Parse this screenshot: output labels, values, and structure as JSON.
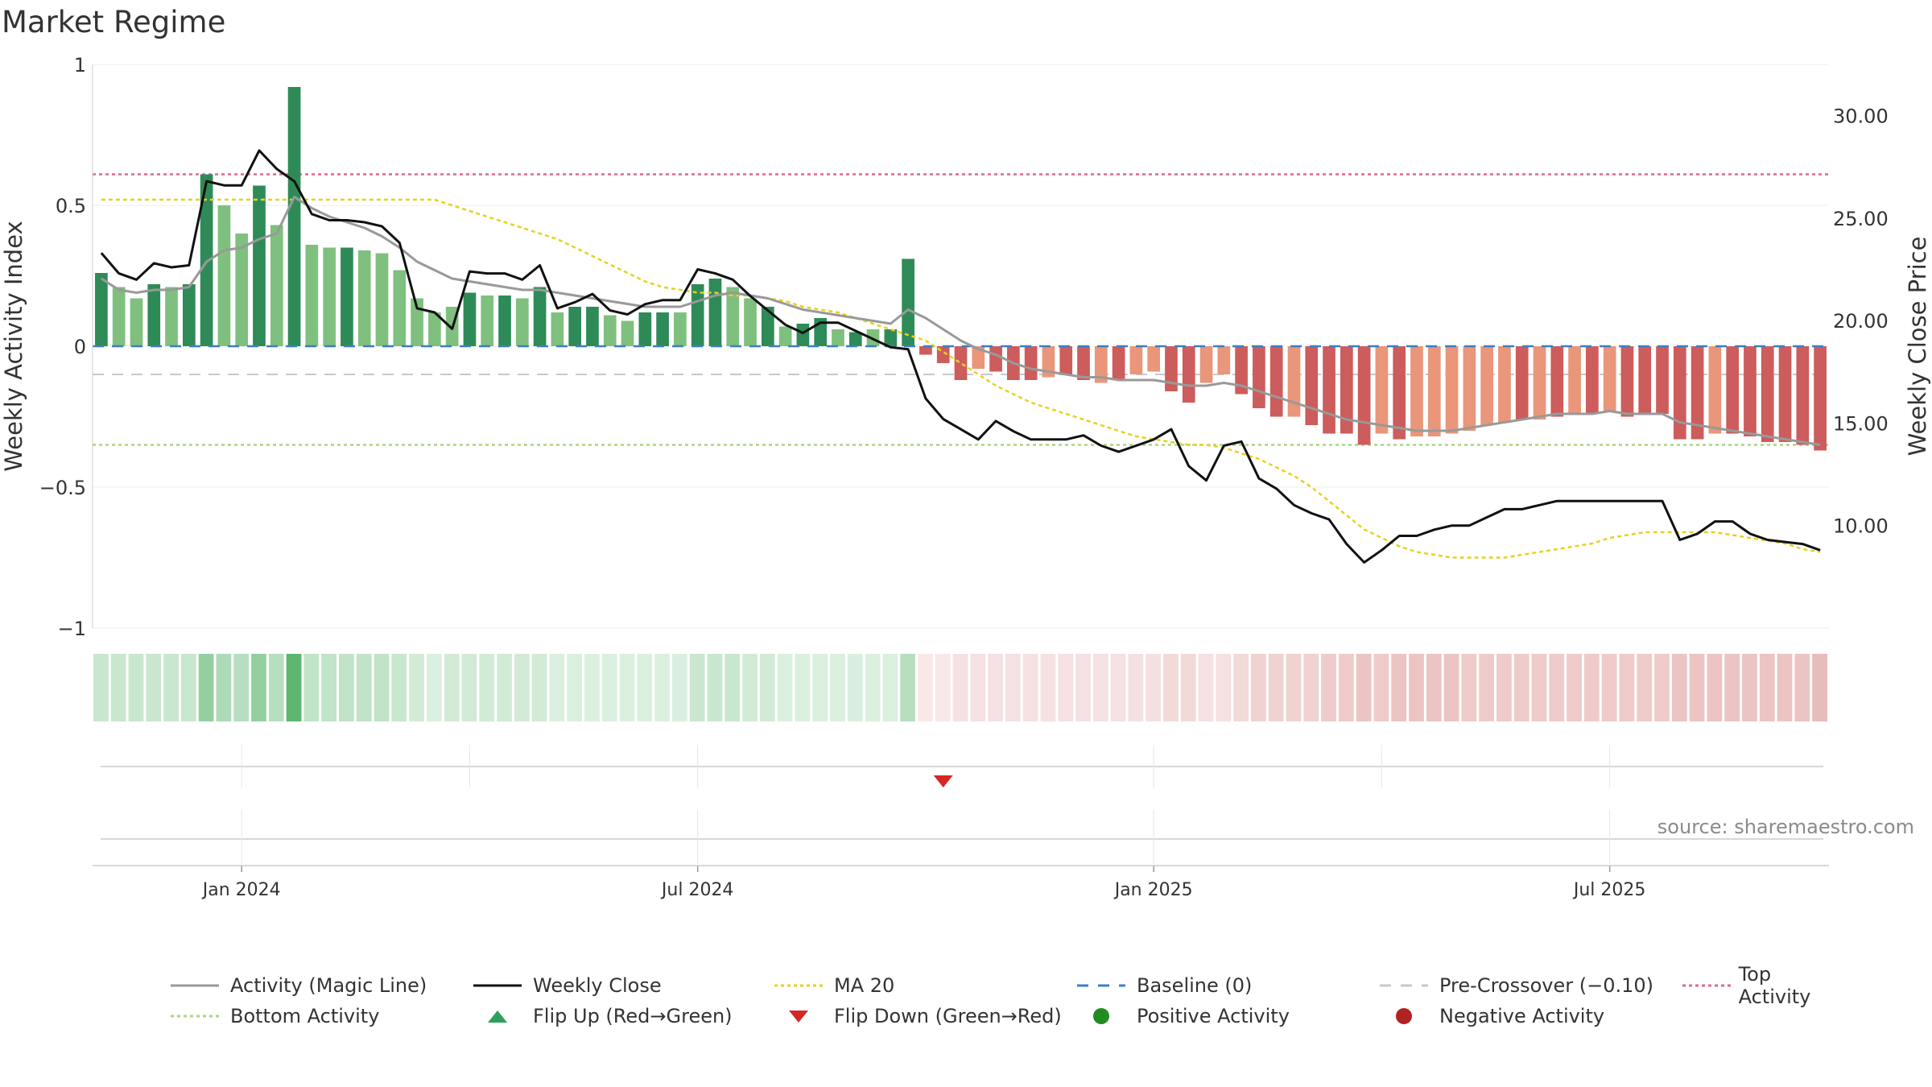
{
  "title": "Market Regime",
  "source": "source: sharemaestro.com",
  "colors": {
    "pos_strong": "#2e8b57",
    "pos_weak": "#7fc07f",
    "neg_strong": "#cd5c5c",
    "neg_weak": "#e9967a",
    "close": "#111111",
    "magic": "#999999",
    "ma20": "#e6d21e",
    "baseline": "#3b7fc4",
    "precross": "#c8c8c8",
    "top": "#d96a8e",
    "bottom": "#a8d87a",
    "flip_up": "#2ca05a",
    "flip_down": "#d62728",
    "pos_dot": "#228b22",
    "neg_dot": "#b22222"
  },
  "legend": [
    {
      "label": "Activity (Magic Line)",
      "key": "line",
      "color": "#999999"
    },
    {
      "label": "Weekly Close",
      "key": "line",
      "color": "#111111"
    },
    {
      "label": "MA 20",
      "key": "dotted",
      "color": "#e6d21e"
    },
    {
      "label": "Baseline (0)",
      "key": "dashed",
      "color": "#3b7fc4"
    },
    {
      "label": "Pre-Crossover (−0.10)",
      "key": "dashed",
      "color": "#c8c8c8"
    },
    {
      "label": "Top Activity",
      "key": "dotted",
      "color": "#d96a8e"
    },
    {
      "label": "Bottom Activity",
      "key": "dotted",
      "color": "#a8d87a"
    },
    {
      "label": "Flip Up (Red→Green)",
      "key": "tri-up",
      "color": "#2ca05a"
    },
    {
      "label": "Flip Down (Green→Red)",
      "key": "tri-down",
      "color": "#d62728"
    },
    {
      "label": "Positive Activity",
      "key": "dot",
      "color": "#228b22"
    },
    {
      "label": "Negative Activity",
      "key": "dot",
      "color": "#b22222"
    }
  ],
  "chart_data": {
    "type": "bar",
    "title": "Market Regime",
    "ylabel": "Weekly Activity Index",
    "y2label": "Weekly Close Price",
    "ylim": [
      -1,
      1
    ],
    "yticks": [
      "1",
      "0.5",
      "0",
      "−0.5",
      "−1"
    ],
    "y2lim": [
      5,
      32.5
    ],
    "y2ticks": [
      "30.00",
      "25.00",
      "20.00",
      "15.00",
      "10.00"
    ],
    "xticks": [
      "Jan 2024",
      "Jul 2024",
      "Jan 2025",
      "Jul 2025"
    ],
    "reference_lines": {
      "baseline": 0,
      "pre_crossover": -0.1,
      "top_activity": 0.61,
      "bottom_activity": -0.35
    },
    "weeks": 99,
    "activity": [
      0.26,
      0.21,
      0.17,
      0.22,
      0.21,
      0.22,
      0.61,
      0.5,
      0.4,
      0.57,
      0.43,
      0.92,
      0.36,
      0.35,
      0.35,
      0.34,
      0.33,
      0.27,
      0.17,
      0.12,
      0.14,
      0.19,
      0.18,
      0.18,
      0.17,
      0.21,
      0.12,
      0.14,
      0.14,
      0.11,
      0.09,
      0.12,
      0.12,
      0.12,
      0.22,
      0.24,
      0.21,
      0.17,
      0.14,
      0.07,
      0.08,
      0.1,
      0.06,
      0.05,
      0.06,
      0.06,
      0.31,
      -0.03,
      -0.06,
      -0.12,
      -0.08,
      -0.09,
      -0.12,
      -0.12,
      -0.11,
      -0.1,
      -0.12,
      -0.13,
      -0.12,
      -0.1,
      -0.09,
      -0.16,
      -0.2,
      -0.13,
      -0.1,
      -0.17,
      -0.22,
      -0.25,
      -0.25,
      -0.28,
      -0.31,
      -0.31,
      -0.35,
      -0.31,
      -0.33,
      -0.32,
      -0.32,
      -0.31,
      -0.3,
      -0.28,
      -0.27,
      -0.26,
      -0.26,
      -0.25,
      -0.24,
      -0.24,
      -0.23,
      -0.25,
      -0.24,
      -0.24,
      -0.33,
      -0.33,
      -0.31,
      -0.31,
      -0.32,
      -0.34,
      -0.34,
      -0.35,
      -0.37
    ],
    "strong": [
      1,
      0,
      0,
      1,
      0,
      1,
      1,
      0,
      0,
      1,
      0,
      1,
      0,
      0,
      1,
      0,
      0,
      0,
      0,
      0,
      0,
      1,
      0,
      1,
      0,
      1,
      0,
      1,
      1,
      0,
      0,
      1,
      1,
      0,
      1,
      1,
      0,
      0,
      1,
      0,
      1,
      1,
      0,
      1,
      0,
      1,
      1,
      1,
      1,
      1,
      0,
      1,
      1,
      1,
      0,
      1,
      1,
      0,
      1,
      0,
      0,
      1,
      1,
      0,
      0,
      1,
      1,
      1,
      0,
      1,
      1,
      1,
      1,
      0,
      1,
      0,
      0,
      0,
      0,
      0,
      0,
      1,
      0,
      1,
      0,
      1,
      0,
      1,
      1,
      1,
      1,
      1,
      0,
      1,
      1,
      1,
      1,
      1,
      1
    ],
    "magic_line": [
      0.24,
      0.2,
      0.19,
      0.2,
      0.2,
      0.21,
      0.3,
      0.34,
      0.35,
      0.38,
      0.4,
      0.53,
      0.49,
      0.46,
      0.44,
      0.42,
      0.39,
      0.35,
      0.3,
      0.27,
      0.24,
      0.23,
      0.22,
      0.21,
      0.2,
      0.2,
      0.19,
      0.18,
      0.17,
      0.16,
      0.15,
      0.14,
      0.14,
      0.14,
      0.16,
      0.18,
      0.19,
      0.18,
      0.17,
      0.15,
      0.13,
      0.12,
      0.11,
      0.1,
      0.09,
      0.08,
      0.13,
      0.1,
      0.06,
      0.02,
      -0.01,
      -0.03,
      -0.06,
      -0.08,
      -0.09,
      -0.1,
      -0.11,
      -0.11,
      -0.12,
      -0.12,
      -0.12,
      -0.13,
      -0.14,
      -0.14,
      -0.13,
      -0.14,
      -0.16,
      -0.18,
      -0.2,
      -0.22,
      -0.24,
      -0.26,
      -0.27,
      -0.28,
      -0.29,
      -0.3,
      -0.3,
      -0.3,
      -0.29,
      -0.28,
      -0.27,
      -0.26,
      -0.25,
      -0.24,
      -0.24,
      -0.24,
      -0.23,
      -0.24,
      -0.24,
      -0.24,
      -0.27,
      -0.28,
      -0.29,
      -0.3,
      -0.31,
      -0.32,
      -0.33,
      -0.34,
      -0.35
    ],
    "weekly_close": [
      23.3,
      22.3,
      22,
      22.8,
      22.6,
      22.7,
      26.8,
      26.6,
      26.6,
      28.3,
      27.4,
      26.8,
      25.2,
      24.9,
      24.9,
      24.8,
      24.6,
      23.8,
      20.6,
      20.4,
      19.6,
      22.4,
      22.3,
      22.3,
      22,
      22.7,
      20.6,
      20.9,
      21.3,
      20.5,
      20.3,
      20.8,
      21,
      21,
      22.5,
      22.3,
      22,
      21.2,
      20.5,
      19.8,
      19.4,
      19.9,
      19.9,
      19.5,
      19.1,
      18.7,
      18.6,
      16.2,
      15.2,
      14.7,
      14.2,
      15.1,
      14.6,
      14.2,
      14.2,
      14.2,
      14.4,
      13.9,
      13.6,
      13.9,
      14.2,
      14.7,
      12.9,
      12.2,
      13.9,
      14.1,
      12.3,
      11.8,
      11,
      10.6,
      10.3,
      9.1,
      8.2,
      8.8,
      9.5,
      9.5,
      9.8,
      10,
      10,
      10.4,
      10.8,
      10.8,
      11,
      11.2,
      11.2,
      11.2,
      11.2,
      11.2,
      11.2,
      11.2,
      9.3,
      9.6,
      10.2,
      10.2,
      9.6,
      9.3,
      9.2,
      9.1,
      8.8
    ],
    "ma20": [
      0.52,
      0.52,
      0.52,
      0.52,
      0.52,
      0.52,
      0.52,
      0.52,
      0.52,
      0.52,
      0.52,
      0.52,
      0.52,
      0.52,
      0.52,
      0.52,
      0.52,
      0.52,
      0.52,
      0.52,
      0.5,
      0.48,
      0.46,
      0.44,
      0.42,
      0.4,
      0.38,
      0.35,
      0.32,
      0.29,
      0.26,
      0.23,
      0.21,
      0.2,
      0.19,
      0.19,
      0.18,
      0.18,
      0.17,
      0.16,
      0.14,
      0.13,
      0.12,
      0.1,
      0.08,
      0.06,
      0.04,
      0.02,
      -0.02,
      -0.06,
      -0.1,
      -0.14,
      -0.17,
      -0.2,
      -0.22,
      -0.24,
      -0.26,
      -0.28,
      -0.3,
      -0.32,
      -0.33,
      -0.34,
      -0.35,
      -0.35,
      -0.36,
      -0.38,
      -0.4,
      -0.43,
      -0.46,
      -0.5,
      -0.55,
      -0.6,
      -0.65,
      -0.68,
      -0.71,
      -0.73,
      -0.74,
      -0.75,
      -0.75,
      -0.75,
      -0.75,
      -0.74,
      -0.73,
      -0.72,
      -0.71,
      -0.7,
      -0.68,
      -0.67,
      -0.66,
      -0.66,
      -0.66,
      -0.66,
      -0.66,
      -0.67,
      -0.68,
      -0.69,
      -0.7,
      -0.72,
      -0.73
    ],
    "regime_strip_intensity": [
      0.3,
      0.3,
      0.3,
      0.3,
      0.3,
      0.3,
      0.6,
      0.45,
      0.4,
      0.6,
      0.4,
      0.9,
      0.35,
      0.35,
      0.35,
      0.35,
      0.35,
      0.3,
      0.25,
      0.2,
      0.25,
      0.25,
      0.25,
      0.25,
      0.25,
      0.25,
      0.2,
      0.2,
      0.2,
      0.2,
      0.2,
      0.2,
      0.2,
      0.2,
      0.3,
      0.3,
      0.3,
      0.25,
      0.25,
      0.2,
      0.2,
      0.2,
      0.2,
      0.2,
      0.2,
      0.2,
      0.4,
      0.15,
      0.15,
      0.2,
      0.2,
      0.2,
      0.2,
      0.2,
      0.2,
      0.2,
      0.2,
      0.2,
      0.2,
      0.2,
      0.2,
      0.25,
      0.25,
      0.2,
      0.2,
      0.25,
      0.3,
      0.3,
      0.3,
      0.3,
      0.35,
      0.35,
      0.4,
      0.35,
      0.4,
      0.4,
      0.4,
      0.4,
      0.35,
      0.35,
      0.35,
      0.35,
      0.35,
      0.35,
      0.35,
      0.35,
      0.35,
      0.35,
      0.35,
      0.35,
      0.4,
      0.4,
      0.4,
      0.4,
      0.4,
      0.4,
      0.4,
      0.4,
      0.45
    ],
    "flip_down_weeks": [
      48
    ],
    "flip_up_weeks": []
  }
}
